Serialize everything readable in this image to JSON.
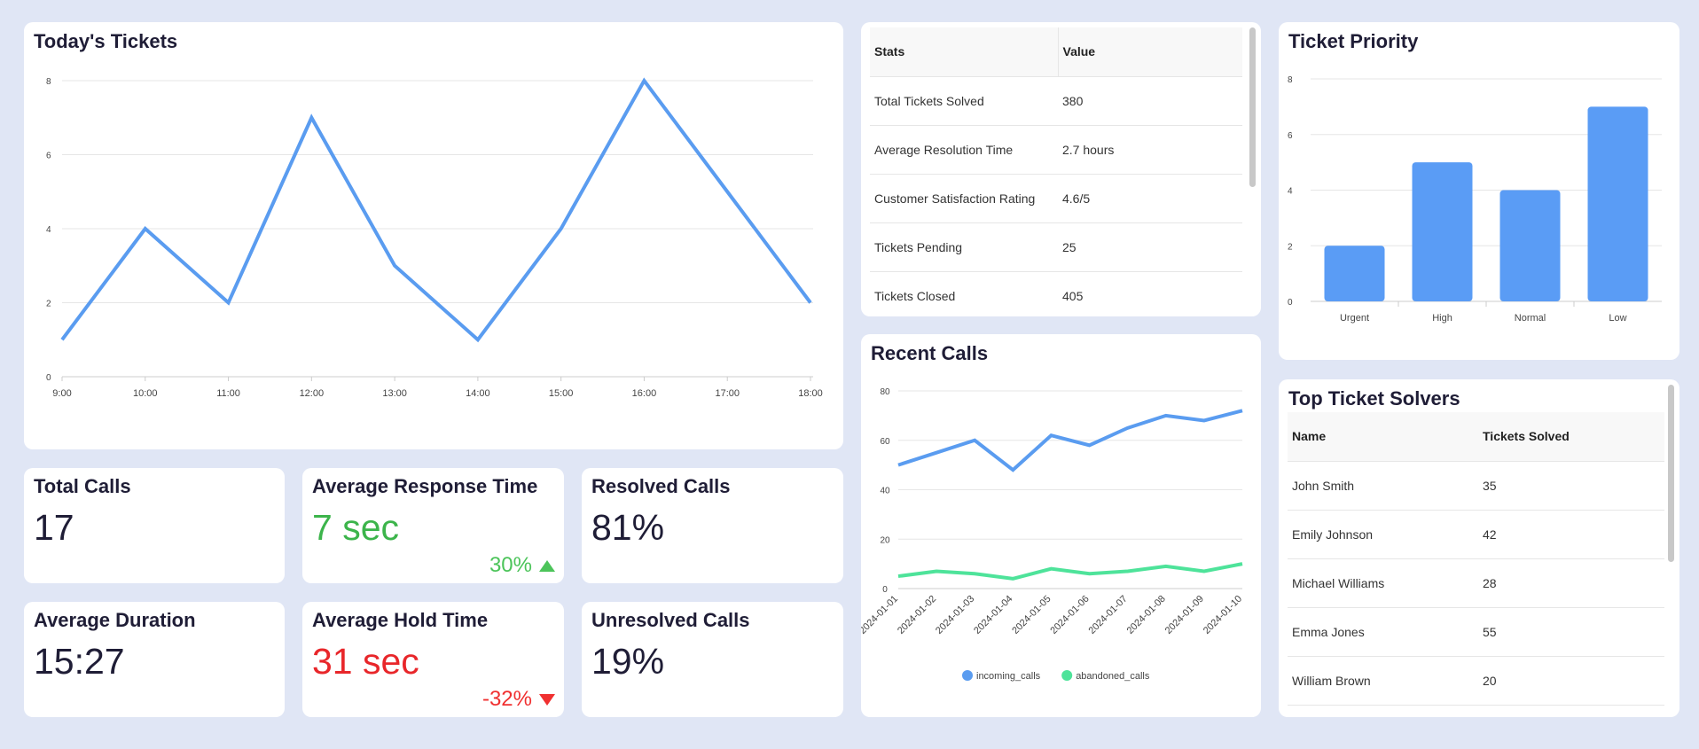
{
  "todays_tickets": {
    "title": "Today's Tickets",
    "chart_data": {
      "type": "line",
      "x": [
        "9:00",
        "10:00",
        "11:00",
        "12:00",
        "13:00",
        "14:00",
        "15:00",
        "16:00",
        "17:00",
        "18:00"
      ],
      "values": [
        1,
        4,
        2,
        7,
        3,
        1,
        4,
        8,
        5,
        2
      ],
      "ylim": [
        0,
        8
      ],
      "yticks": [
        0,
        2,
        4,
        6,
        8
      ],
      "color": "#5a9cf0",
      "grid": true
    }
  },
  "stats_table": {
    "headers": [
      "Stats",
      "Value"
    ],
    "rows": [
      [
        "Total Tickets Solved",
        "380"
      ],
      [
        "Average Resolution Time",
        "2.7 hours"
      ],
      [
        "Customer Satisfaction Rating",
        "4.6/5"
      ],
      [
        "Tickets Pending",
        "25"
      ],
      [
        "Tickets Closed",
        "405"
      ]
    ]
  },
  "ticket_priority": {
    "title": "Ticket Priority",
    "chart_data": {
      "type": "bar",
      "categories": [
        "Urgent",
        "High",
        "Normal",
        "Low"
      ],
      "values": [
        2,
        5,
        4,
        7
      ],
      "ylim": [
        0,
        8
      ],
      "yticks": [
        0,
        2,
        4,
        6,
        8
      ],
      "color": "#5a9cf5",
      "grid": true
    }
  },
  "kpis": {
    "total_calls": {
      "title": "Total Calls",
      "value": "17"
    },
    "avg_response": {
      "title": "Average Response Time",
      "value": "7 sec",
      "delta": "30%",
      "color": "#3cb44b",
      "delta_color": "#4cc45a"
    },
    "resolved_calls": {
      "title": "Resolved Calls",
      "value": "81%"
    },
    "avg_duration": {
      "title": "Average Duration",
      "value": "15:27"
    },
    "avg_hold": {
      "title": "Average Hold Time",
      "value": "31 sec",
      "delta": "-32%",
      "color": "#e8262a",
      "delta_color": "#f03030"
    },
    "unresolved_calls": {
      "title": "Unresolved Calls",
      "value": "19%"
    }
  },
  "recent_calls": {
    "title": "Recent Calls",
    "chart_data": {
      "type": "line",
      "x": [
        "2024-01-01",
        "2024-01-02",
        "2024-01-03",
        "2024-01-04",
        "2024-01-05",
        "2024-01-06",
        "2024-01-07",
        "2024-01-08",
        "2024-01-09",
        "2024-01-10"
      ],
      "series": [
        {
          "name": "incoming_calls",
          "values": [
            50,
            55,
            60,
            48,
            62,
            58,
            65,
            70,
            68,
            72
          ],
          "color": "#5a9cf0"
        },
        {
          "name": "abandoned_calls",
          "values": [
            5,
            7,
            6,
            4,
            8,
            6,
            7,
            9,
            7,
            10
          ],
          "color": "#4ee39a"
        }
      ],
      "ylim": [
        0,
        80
      ],
      "yticks": [
        0,
        20,
        40,
        60,
        80
      ],
      "legend": "bottom",
      "grid": true
    }
  },
  "top_solvers": {
    "title": "Top Ticket Solvers",
    "headers": [
      "Name",
      "Tickets Solved"
    ],
    "rows": [
      [
        "John Smith",
        "35"
      ],
      [
        "Emily Johnson",
        "42"
      ],
      [
        "Michael Williams",
        "28"
      ],
      [
        "Emma Jones",
        "55"
      ],
      [
        "William Brown",
        "20"
      ]
    ]
  }
}
